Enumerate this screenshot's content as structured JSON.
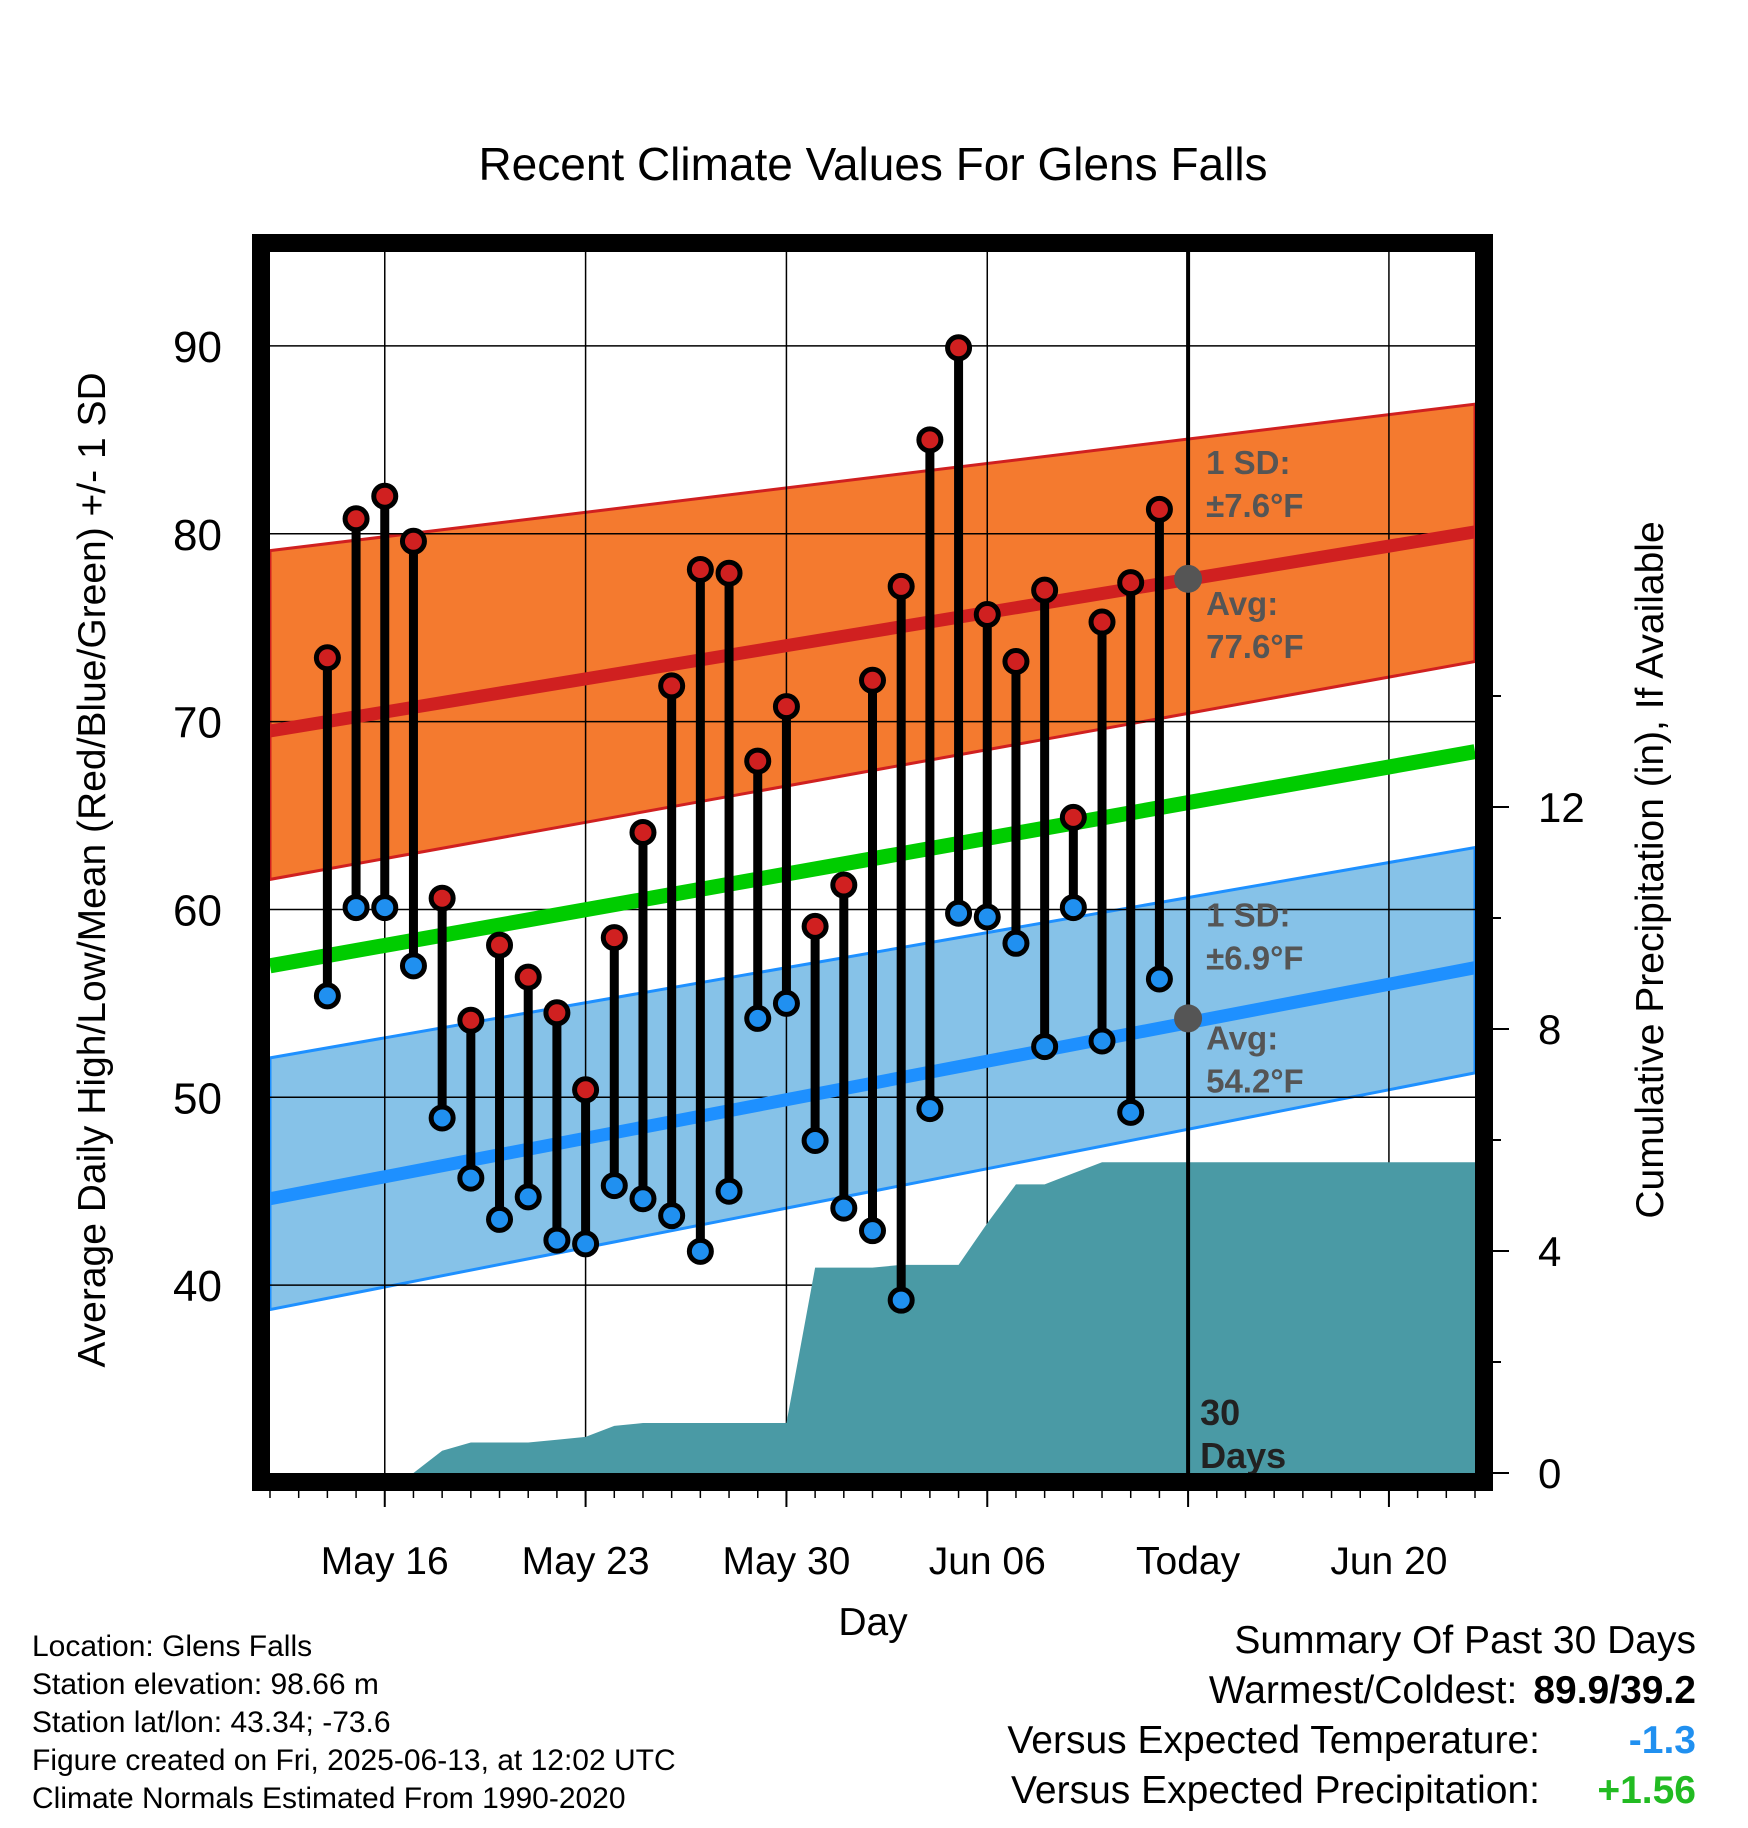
{
  "chart_data": {
    "type": "line",
    "title": "Recent Climate Values For Glens Falls",
    "xlabel": "Day",
    "ylabel": "Average Daily High/Low/Mean (Red/Blue/Green) +/- 1 SD",
    "y2label": "Cumulative Precipitation (in), If Available",
    "ylim": [
      30,
      95
    ],
    "y_ticks": [
      40,
      50,
      60,
      70,
      80,
      90
    ],
    "y2lim": [
      0,
      22
    ],
    "y2_ticks": [
      0,
      4,
      8,
      12
    ],
    "grid": true,
    "x_ticks": [
      {
        "date": "2025-05-16",
        "label": "May 16"
      },
      {
        "date": "2025-05-23",
        "label": "May 23"
      },
      {
        "date": "2025-05-30",
        "label": "May 30"
      },
      {
        "date": "2025-06-06",
        "label": "Jun 06"
      },
      {
        "date": "2025-06-13",
        "label": "Today"
      },
      {
        "date": "2025-06-20",
        "label": "Jun 20"
      }
    ],
    "xlim": [
      "2025-05-12",
      "2025-06-23"
    ],
    "days": [
      "2025-05-14",
      "2025-05-15",
      "2025-05-16",
      "2025-05-17",
      "2025-05-18",
      "2025-05-19",
      "2025-05-20",
      "2025-05-21",
      "2025-05-22",
      "2025-05-23",
      "2025-05-24",
      "2025-05-25",
      "2025-05-26",
      "2025-05-27",
      "2025-05-28",
      "2025-05-29",
      "2025-05-30",
      "2025-05-31",
      "2025-06-01",
      "2025-06-02",
      "2025-06-03",
      "2025-06-04",
      "2025-06-05",
      "2025-06-06",
      "2025-06-07",
      "2025-06-08",
      "2025-06-09",
      "2025-06-10",
      "2025-06-11",
      "2025-06-12"
    ],
    "series": [
      {
        "name": "High",
        "color": "#d02020",
        "values": [
          73.4,
          80.8,
          82.0,
          79.6,
          60.6,
          54.1,
          58.1,
          56.4,
          54.5,
          50.4,
          58.5,
          64.1,
          71.9,
          78.1,
          77.9,
          67.9,
          70.8,
          59.1,
          61.3,
          72.2,
          77.2,
          85.0,
          89.9,
          75.7,
          73.2,
          77.0,
          64.9,
          75.3,
          77.4,
          81.3
        ]
      },
      {
        "name": "Low",
        "color": "#2090f0",
        "values": [
          55.4,
          60.1,
          60.1,
          57.0,
          48.9,
          45.7,
          43.5,
          44.7,
          42.4,
          42.2,
          45.3,
          44.6,
          43.7,
          41.8,
          45.0,
          54.2,
          55.0,
          47.7,
          44.1,
          42.9,
          39.2,
          49.4,
          59.8,
          59.6,
          58.2,
          52.7,
          60.1,
          53.0,
          49.2,
          56.3
        ]
      }
    ],
    "normals": {
      "high_avg": [
        69.5,
        80.1
      ],
      "high_sd": 7.6,
      "high_upper": [
        79.1,
        86.9
      ],
      "high_lower": [
        61.6,
        73.2
      ],
      "mean": [
        57.0,
        68.4
      ],
      "low_avg": [
        44.6,
        56.9
      ],
      "low_sd": 6.9,
      "low_upper": [
        52.1,
        63.3
      ],
      "low_lower": [
        38.7,
        51.3
      ],
      "band_colors": {
        "high": "#f47a2f",
        "high_line": "#d02020",
        "mean": "#00cc00",
        "low": "#86c2e8",
        "low_line": "#1e90ff",
        "precip": "#4a9aa5"
      }
    },
    "precip_cumulative": {
      "days": [
        "2025-05-13",
        "2025-05-14",
        "2025-05-15",
        "2025-05-16",
        "2025-05-17",
        "2025-05-18",
        "2025-05-19",
        "2025-05-20",
        "2025-05-21",
        "2025-05-22",
        "2025-05-23",
        "2025-05-24",
        "2025-05-25",
        "2025-05-26",
        "2025-05-27",
        "2025-05-28",
        "2025-05-29",
        "2025-05-30",
        "2025-05-31",
        "2025-06-01",
        "2025-06-02",
        "2025-06-03",
        "2025-06-04",
        "2025-06-05",
        "2025-06-06",
        "2025-06-07",
        "2025-06-08",
        "2025-06-09",
        "2025-06-10",
        "2025-06-11",
        "2025-06-12",
        "2025-06-13",
        "2025-06-23"
      ],
      "values": [
        0,
        0,
        0,
        0,
        0,
        0.4,
        0.55,
        0.55,
        0.55,
        0.6,
        0.65,
        0.85,
        0.9,
        0.9,
        0.9,
        0.9,
        0.9,
        0.9,
        3.7,
        3.7,
        3.7,
        3.75,
        3.75,
        3.75,
        4.5,
        5.2,
        5.2,
        5.4,
        5.6,
        5.6,
        5.6,
        5.6,
        5.6
      ]
    },
    "annotations": {
      "today_date": "2025-06-13",
      "high_sd_label": "1 SD:",
      "high_sd_value": "±7.6°F",
      "high_avg_label": "Avg:",
      "high_avg_value": "77.6°F",
      "high_avg_marker": 77.6,
      "low_sd_label": "1 SD:",
      "low_sd_value": "±6.9°F",
      "low_avg_label": "Avg:",
      "low_avg_value": "54.2°F",
      "low_avg_marker": 54.2,
      "period_line1": "30",
      "period_line2": "Days"
    }
  },
  "footer": {
    "location": "Location: Glens Falls",
    "elevation": "Station elevation: 98.66 m",
    "latlon": "Station lat/lon: 43.34; -73.6",
    "created": "Figure created on Fri, 2025-06-13, at 12:02 UTC",
    "normals": "Climate Normals Estimated From 1990-2020"
  },
  "summary": {
    "title": "Summary Of Past 30 Days",
    "warmest_label": "Warmest/Coldest:",
    "warmest_value": "89.9/39.2",
    "temp_label": "Versus Expected Temperature:",
    "temp_value": "-1.3",
    "temp_color": "#2090f0",
    "precip_label": "Versus Expected Precipitation:",
    "precip_value": "+1.56",
    "precip_color": "#22bb22"
  }
}
